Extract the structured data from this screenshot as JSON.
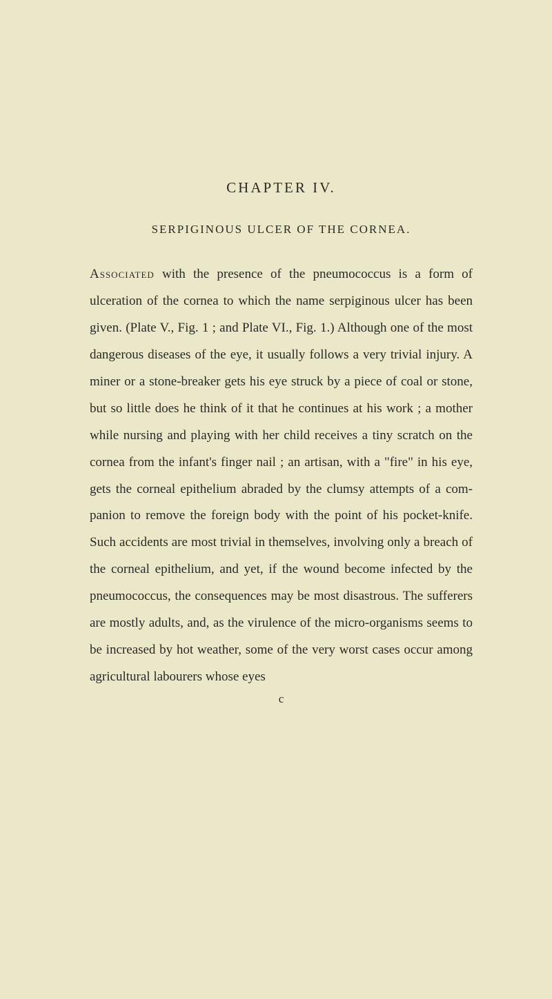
{
  "page": {
    "chapter_heading": "CHAPTER IV.",
    "section_title": "SERPIGINOUS ULCER OF THE CORNEA.",
    "first_word": "Associated",
    "body_rest": " with the presence of the pneumococcus is a form of ulceration of the cornea to which the name serpiginous ulcer has been given. (Plate V., Fig. 1 ; and Plate VI., Fig. 1.) Although one of the most dangerous diseases of the eye, it usually follows a very trivial injury. A miner or a stone-breaker gets his eye struck by a piece of coal or stone, but so little does he think of it that he continues at his work ; a mother while nursing and playing with her child receives a tiny scratch on the cornea from the infant's finger nail ; an artisan, with a \"fire\" in his eye, gets the corneal epithelium abraded by the clumsy attempts of a com­panion to remove the foreign body with the point of his pocket-knife. Such accidents are most trivial in themselves, involving only a breach of the corneal epithelium, and yet, if the wound become infected by the pneumococcus, the consequences may be most disastrous. The sufferers are mostly adults, and, as the virulence of the micro-organisms seems to be increased by hot weather, some of the very worst cases occur among agricultural labourers whose eyes",
    "signature_mark": "c"
  },
  "style": {
    "background_color": "#eae8c8",
    "text_color": "#2a2a28",
    "body_fontsize": 19,
    "heading_fontsize": 21,
    "title_fontsize": 17,
    "line_height": 2.05
  }
}
